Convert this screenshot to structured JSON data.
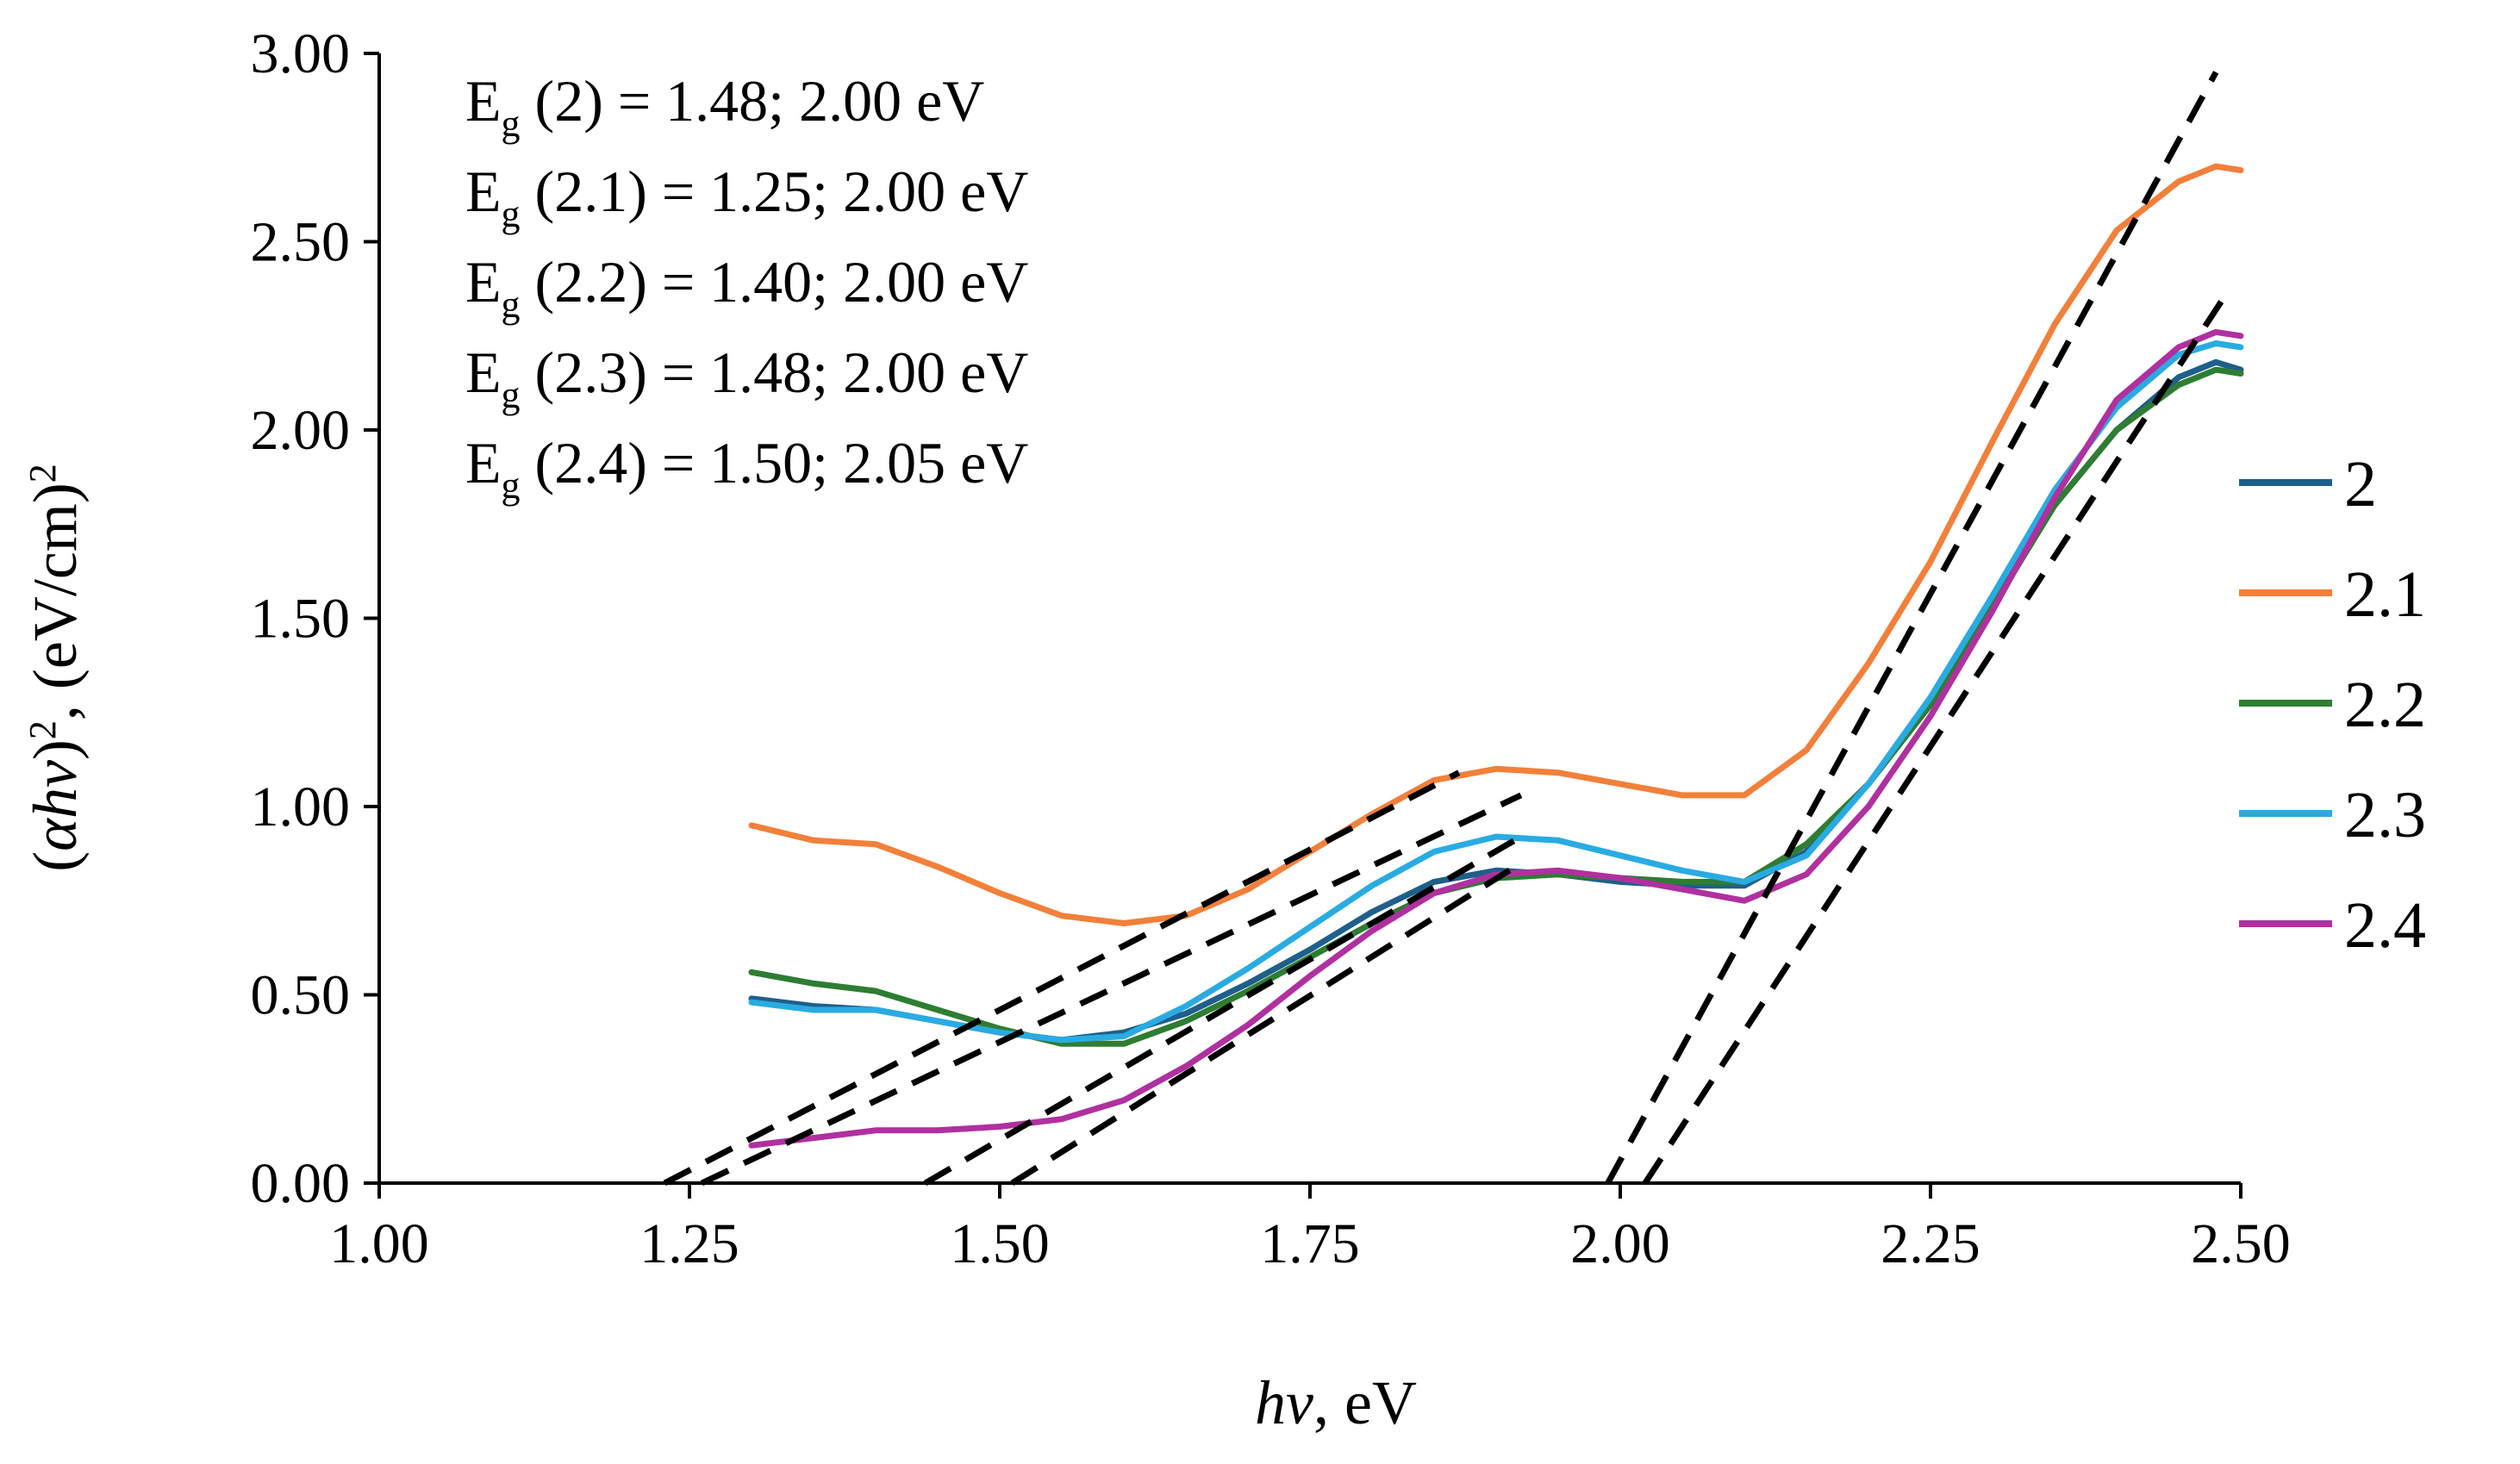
{
  "chart_data": {
    "type": "line",
    "xlabel_italic": "hv",
    "xlabel_rest": ", eV",
    "ylabel_open": "(",
    "ylabel_italic": "αhv",
    "ylabel_mid": ")",
    "ylabel_sup1": "2",
    "ylabel_rest": ", (eV/cm)",
    "ylabel_sup2": "2",
    "xlim": [
      1.0,
      2.5
    ],
    "ylim": [
      0.0,
      3.0
    ],
    "x_ticks": [
      "1.00",
      "1.25",
      "1.50",
      "1.75",
      "2.00",
      "2.25",
      "2.50"
    ],
    "y_ticks": [
      "0.00",
      "0.50",
      "1.00",
      "1.50",
      "2.00",
      "2.50",
      "3.00"
    ],
    "grid": false,
    "legend_position": "right",
    "annotations": [
      {
        "main": "E",
        "sub": "g",
        "rest": " (2) = 1.48;  2.00 eV"
      },
      {
        "main": "E",
        "sub": "g",
        "rest": " (2.1) = 1.25; 2.00 eV"
      },
      {
        "main": "E",
        "sub": "g",
        "rest": " (2.2) = 1.40; 2.00 eV"
      },
      {
        "main": "E",
        "sub": "g",
        "rest": " (2.3) = 1.48; 2.00 eV"
      },
      {
        "main": "E",
        "sub": "g",
        "rest": " (2.4) = 1.50; 2.05 eV"
      }
    ],
    "series": [
      {
        "name": "2",
        "color": "#1f5f8b",
        "x": [
          1.3,
          1.35,
          1.4,
          1.45,
          1.5,
          1.55,
          1.6,
          1.65,
          1.7,
          1.75,
          1.8,
          1.85,
          1.9,
          1.95,
          2.0,
          2.05,
          2.1,
          2.15,
          2.2,
          2.25,
          2.3,
          2.35,
          2.4,
          2.45,
          2.48,
          2.5
        ],
        "y": [
          0.49,
          0.47,
          0.46,
          0.43,
          0.4,
          0.38,
          0.4,
          0.45,
          0.53,
          0.62,
          0.72,
          0.8,
          0.83,
          0.82,
          0.8,
          0.79,
          0.79,
          0.88,
          1.06,
          1.28,
          1.55,
          1.8,
          2.0,
          2.14,
          2.18,
          2.16
        ]
      },
      {
        "name": "2.1",
        "color": "#f2803a",
        "x": [
          1.3,
          1.35,
          1.4,
          1.45,
          1.5,
          1.55,
          1.6,
          1.65,
          1.7,
          1.75,
          1.8,
          1.85,
          1.9,
          1.95,
          2.0,
          2.05,
          2.1,
          2.15,
          2.2,
          2.25,
          2.3,
          2.35,
          2.4,
          2.45,
          2.48,
          2.5
        ],
        "y": [
          0.95,
          0.91,
          0.9,
          0.84,
          0.77,
          0.71,
          0.69,
          0.71,
          0.78,
          0.88,
          0.98,
          1.07,
          1.1,
          1.09,
          1.06,
          1.03,
          1.03,
          1.15,
          1.38,
          1.65,
          1.97,
          2.28,
          2.53,
          2.66,
          2.7,
          2.69
        ]
      },
      {
        "name": "2.2",
        "color": "#2e7d32",
        "x": [
          1.3,
          1.35,
          1.4,
          1.45,
          1.5,
          1.55,
          1.6,
          1.65,
          1.7,
          1.75,
          1.8,
          1.85,
          1.9,
          1.95,
          2.0,
          2.05,
          2.1,
          2.15,
          2.2,
          2.25,
          2.3,
          2.35,
          2.4,
          2.45,
          2.48,
          2.5
        ],
        "y": [
          0.56,
          0.53,
          0.51,
          0.46,
          0.41,
          0.37,
          0.37,
          0.43,
          0.51,
          0.6,
          0.69,
          0.77,
          0.81,
          0.82,
          0.81,
          0.8,
          0.8,
          0.9,
          1.06,
          1.27,
          1.53,
          1.8,
          2.0,
          2.12,
          2.16,
          2.15
        ]
      },
      {
        "name": "2.3",
        "color": "#29abe2",
        "x": [
          1.3,
          1.35,
          1.4,
          1.45,
          1.5,
          1.55,
          1.6,
          1.65,
          1.7,
          1.75,
          1.8,
          1.85,
          1.9,
          1.95,
          2.0,
          2.05,
          2.1,
          2.15,
          2.2,
          2.25,
          2.3,
          2.35,
          2.4,
          2.45,
          2.48,
          2.5
        ],
        "y": [
          0.48,
          0.46,
          0.46,
          0.43,
          0.4,
          0.38,
          0.39,
          0.47,
          0.57,
          0.68,
          0.79,
          0.88,
          0.92,
          0.91,
          0.87,
          0.83,
          0.8,
          0.87,
          1.06,
          1.29,
          1.56,
          1.84,
          2.06,
          2.2,
          2.23,
          2.22
        ]
      },
      {
        "name": "2.4",
        "color": "#b0309f",
        "x": [
          1.3,
          1.35,
          1.4,
          1.45,
          1.5,
          1.55,
          1.6,
          1.65,
          1.7,
          1.75,
          1.8,
          1.85,
          1.9,
          1.95,
          2.0,
          2.05,
          2.1,
          2.15,
          2.2,
          2.25,
          2.3,
          2.35,
          2.4,
          2.45,
          2.48,
          2.5
        ],
        "y": [
          0.1,
          0.12,
          0.14,
          0.14,
          0.15,
          0.17,
          0.22,
          0.31,
          0.42,
          0.55,
          0.67,
          0.77,
          0.82,
          0.83,
          0.81,
          0.78,
          0.75,
          0.82,
          1.0,
          1.24,
          1.52,
          1.82,
          2.08,
          2.22,
          2.26,
          2.25
        ]
      }
    ],
    "fit_lines": [
      {
        "x": [
          1.23,
          1.87
        ],
        "y": [
          0.0,
          1.09
        ]
      },
      {
        "x": [
          1.26,
          1.92
        ],
        "y": [
          0.0,
          1.03
        ]
      },
      {
        "x": [
          1.44,
          1.92
        ],
        "y": [
          0.0,
          0.92
        ]
      },
      {
        "x": [
          1.51,
          1.92
        ],
        "y": [
          0.0,
          0.85
        ]
      },
      {
        "x": [
          1.99,
          2.48
        ],
        "y": [
          0.0,
          2.95
        ]
      },
      {
        "x": [
          2.02,
          2.49
        ],
        "y": [
          0.0,
          2.37
        ]
      }
    ]
  }
}
